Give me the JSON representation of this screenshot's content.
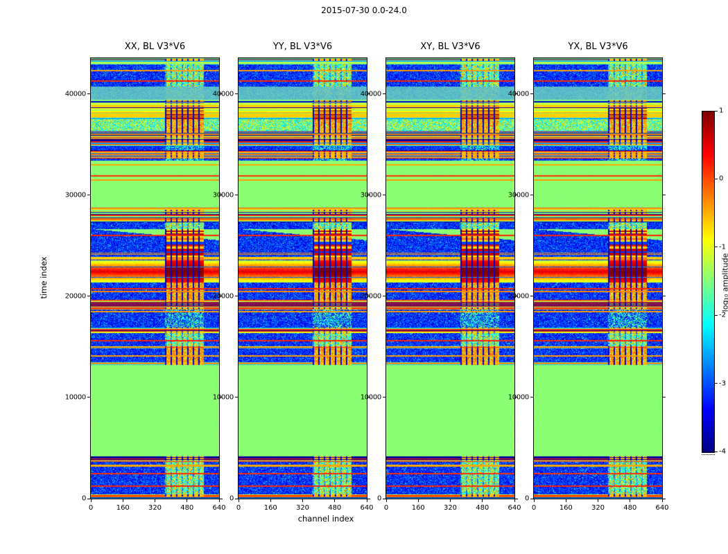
{
  "figure": {
    "title": "2015-07-30 0.0-24.0",
    "xlabel": "channel index",
    "ylabel": "time index",
    "colorbar_label": "log₁₀ amplitude"
  },
  "chart_data": {
    "type": "heatmap",
    "title": "2015-07-30 0.0-24.0",
    "colormap": "jet",
    "panels": [
      {
        "title": "XX, BL V3*V6",
        "seed": 1
      },
      {
        "title": "YY, BL V3*V6",
        "seed": 2
      },
      {
        "title": "XY, BL V3*V6",
        "seed": 3
      },
      {
        "title": "YX, BL V3*V6",
        "seed": 4
      }
    ],
    "x_axis": {
      "label": "channel index",
      "min": 0,
      "max": 640,
      "ticks": [
        0,
        160,
        320,
        480,
        640
      ]
    },
    "y_axis": {
      "label": "time index",
      "min": 0,
      "max": 43560,
      "ticks": [
        0,
        10000,
        20000,
        30000,
        40000
      ]
    },
    "colorbar": {
      "label": "log₁₀ amplitude",
      "min": -4,
      "max": 1,
      "ticks": [
        1,
        0,
        -1,
        -2,
        -3,
        -4
      ]
    },
    "band": {
      "ch0": 370,
      "ch1": 560,
      "gap_spacing": 8,
      "gap_width": 2
    },
    "feature": {
      "center": 22450,
      "halfwidth": 1100,
      "peak_amp": 0.55
    },
    "regions": [
      {
        "t0": 0,
        "t1": 420,
        "type": "stripes"
      },
      {
        "t0": 420,
        "t1": 3650,
        "type": "bluenoise",
        "band": "speckle",
        "lines": [
          [
            1250,
            0.2
          ],
          [
            2450,
            0.15
          ],
          [
            3250,
            -0.45
          ]
        ]
      },
      {
        "t0": 3650,
        "t1": 4150,
        "type": "stripes"
      },
      {
        "t0": 4150,
        "t1": 13200,
        "type": "green",
        "lines": []
      },
      {
        "t0": 13200,
        "t1": 13500,
        "type": "stripes"
      },
      {
        "t0": 13500,
        "t1": 14850,
        "type": "bluenoise",
        "band": "warm",
        "lines": [
          [
            14100,
            -0.4
          ]
        ]
      },
      {
        "t0": 14850,
        "t1": 15050,
        "type": "stripes"
      },
      {
        "t0": 15050,
        "t1": 16350,
        "type": "bluenoise",
        "band": "speckle",
        "lines": [
          [
            15600,
            0.2
          ]
        ]
      },
      {
        "t0": 16350,
        "t1": 16950,
        "type": "stripes"
      },
      {
        "t0": 16950,
        "t1": 18700,
        "type": "bluenoise",
        "band": "faint",
        "lines": [
          [
            18500,
            -0.4
          ]
        ]
      },
      {
        "t0": 18700,
        "t1": 19650,
        "type": "stripes"
      },
      {
        "t0": 19650,
        "t1": 21350,
        "type": "bluenoise",
        "band": "warm",
        "lines": [
          [
            20500,
            -0.3
          ],
          [
            20750,
            0.2
          ]
        ]
      },
      {
        "t0": 21350,
        "t1": 23550,
        "type": "feature"
      },
      {
        "t0": 23550,
        "t1": 24350,
        "type": "feature2"
      },
      {
        "t0": 24350,
        "t1": 26650,
        "type": "bluenoise",
        "band": "hot2",
        "diag": true,
        "lines": [
          [
            26050,
            0.2
          ]
        ]
      },
      {
        "t0": 26650,
        "t1": 27350,
        "type": "bluenoise",
        "band": "speckle",
        "lines": []
      },
      {
        "t0": 27350,
        "t1": 28750,
        "type": "stripes"
      },
      {
        "t0": 28750,
        "t1": 33450,
        "type": "green",
        "lines": [
          [
            31500,
            -0.35
          ],
          [
            31900,
            0.15
          ],
          [
            33000,
            -0.45
          ]
        ]
      },
      {
        "t0": 33450,
        "t1": 36400,
        "type": "stripes_mixed"
      },
      {
        "t0": 36400,
        "t1": 37550,
        "type": "greenmix",
        "band": "warm"
      },
      {
        "t0": 37550,
        "t1": 38650,
        "type": "yellowrows",
        "band": "hotdash"
      },
      {
        "t0": 38650,
        "t1": 39450,
        "type": "stripes_yellow"
      },
      {
        "t0": 39450,
        "t1": 40750,
        "type": "graynoise",
        "band": "faint"
      },
      {
        "t0": 40750,
        "t1": 42950,
        "type": "bluenoise",
        "band": "speckle",
        "lines": [
          [
            41300,
            0.2
          ],
          [
            42300,
            -0.4
          ]
        ]
      },
      {
        "t0": 42950,
        "t1": 43560,
        "type": "stripes"
      }
    ]
  }
}
